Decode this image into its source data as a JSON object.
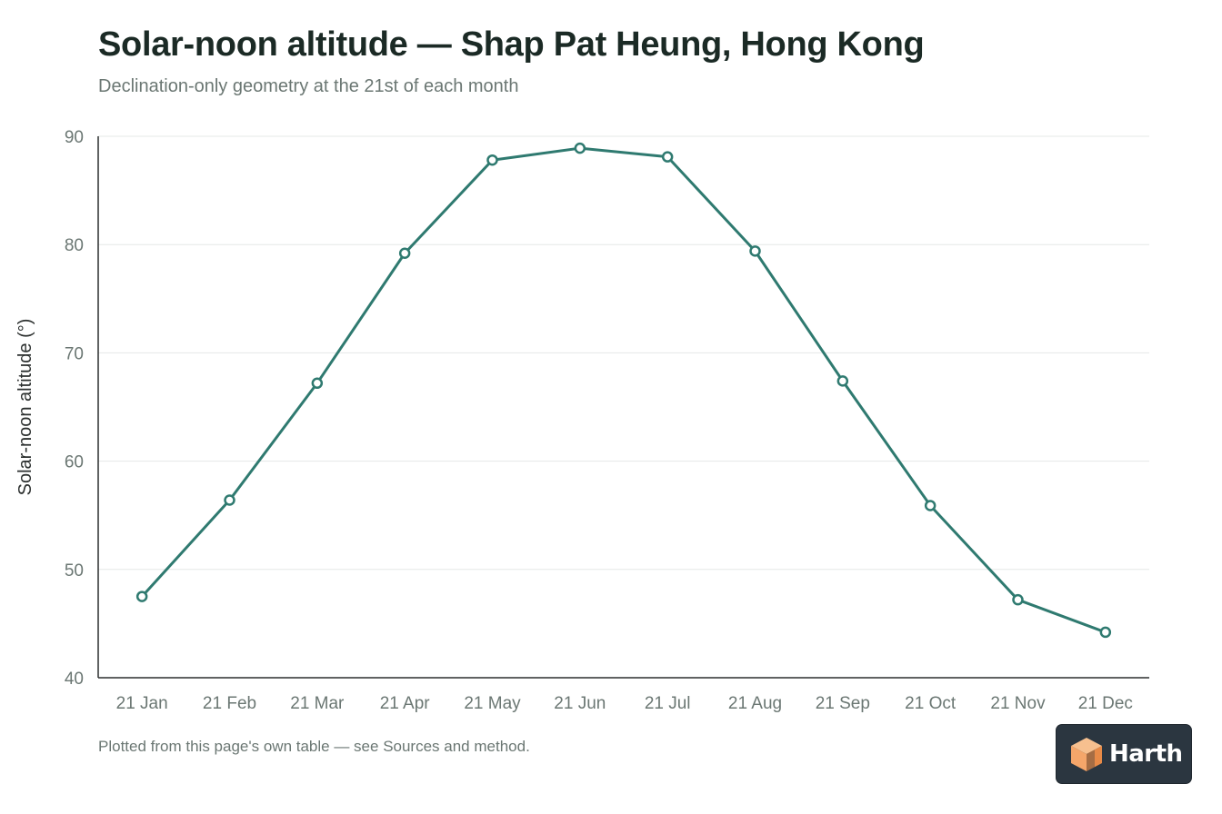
{
  "header": {
    "title": "Solar-noon altitude — Shap Pat Heung, Hong Kong",
    "subtitle": "Declination-only geometry at the 21st of each month"
  },
  "footnote": "Plotted from this page's own table — see Sources and method.",
  "brand": {
    "name": "Harth",
    "logo_icon": "isometric-cube-icon"
  },
  "colors": {
    "line": "#2f7a70",
    "axis_text": "#6b7773",
    "grid": "#e6e8e7",
    "axis": "#2b2f2e",
    "badge": "#2b3640",
    "logo": "#f5a66a"
  },
  "chart_data": {
    "type": "line",
    "x": [
      "21 Jan",
      "21 Feb",
      "21 Mar",
      "21 Apr",
      "21 May",
      "21 Jun",
      "21 Jul",
      "21 Aug",
      "21 Sep",
      "21 Oct",
      "21 Nov",
      "21 Dec"
    ],
    "series": [
      {
        "values": [
          47.5,
          56.4,
          67.2,
          79.2,
          87.8,
          88.9,
          88.1,
          79.4,
          67.4,
          55.9,
          47.2,
          44.2
        ]
      }
    ],
    "ylabel": "Solar-noon altitude (°)",
    "xlabel": "",
    "ylim": [
      40,
      90
    ],
    "yticks": [
      40,
      50,
      60,
      70,
      80,
      90
    ],
    "grid": true,
    "legend": "none",
    "markers": "hollow-circle"
  }
}
